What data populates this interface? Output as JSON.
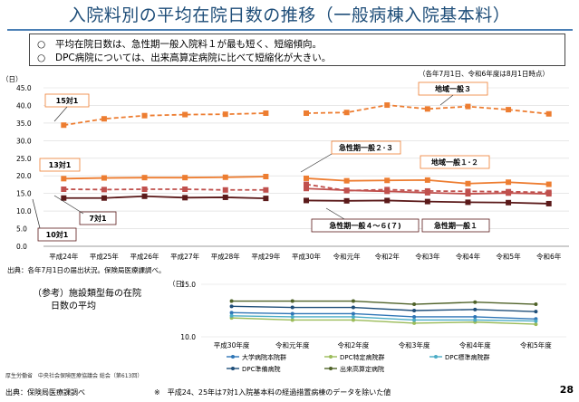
{
  "page": {
    "title": "入院料別の平均在院日数の推移（一般病棟入院基本料）",
    "page_number": "28"
  },
  "summary": [
    {
      "bullet": "○",
      "text": "平均在院日数は、急性期一般入院料１が最も短く、短縮傾向。"
    },
    {
      "bullet": "○",
      "text": "DPC病院については、出来高算定病院に比べて短縮化が大きい。"
    }
  ],
  "note_date": "（各年7月1日、令和6年度は8月1日時点）",
  "source_main": "出典：各年7月1日の届出状況。保険局医療課調べ。",
  "ref_title": "（参考）施設類型毎の在院\n　　日数の平均",
  "ref_credit": "厚生労働省　中央社会保険医療協議会 総会（第613回）",
  "source_bottom": "出典：保険局医療課調べ",
  "footnote": "※　平成24、25年は7対1入院基本料の経過措置病棟のデータを除いた値",
  "colors": {
    "orange": "#ed7d31",
    "dark_red": "#c0504d",
    "maroon": "#5b1a1a",
    "series_blue": "#2e75b6",
    "series_green": "#9bbb59",
    "series_teal": "#4bacc6",
    "series_navy": "#1f4e79",
    "series_olive": "#4f6228",
    "title": "#1f4e79"
  },
  "chart_data": [
    {
      "type": "line",
      "title": "",
      "ylabel": "（日）",
      "ylim": [
        0,
        45
      ],
      "yticks": [
        "0.0",
        "5.0",
        "10.0",
        "15.0",
        "20.0",
        "25.0",
        "30.0",
        "35.0",
        "40.0",
        "45.0"
      ],
      "grid": true,
      "categories": [
        "平成24年",
        "平成25年",
        "平成26年",
        "平成27年",
        "平成28年",
        "平成29年",
        "平成30年",
        "令和元年",
        "令和2年",
        "令和3年",
        "令和4年",
        "令和5年",
        "令和6年"
      ],
      "segment_break_after": "平成29年",
      "series": [
        {
          "name": "15対1",
          "style": "dashed",
          "color": "orange",
          "values": [
            34.4,
            36.2,
            37.1,
            37.4,
            37.5,
            37.8,
            null,
            null,
            null,
            null,
            null,
            null,
            null
          ]
        },
        {
          "name": "地域一般３",
          "style": "dashed",
          "color": "orange",
          "values": [
            null,
            null,
            null,
            null,
            null,
            null,
            37.8,
            38.0,
            40.1,
            39.0,
            39.7,
            38.8,
            37.6
          ]
        },
        {
          "name": "13対1",
          "style": "solid",
          "color": "orange",
          "values": [
            19.2,
            19.4,
            19.5,
            19.5,
            19.6,
            19.8,
            null,
            null,
            null,
            null,
            null,
            null,
            null
          ]
        },
        {
          "name": "地域一般１･２",
          "style": "solid",
          "color": "orange",
          "values": [
            null,
            null,
            null,
            null,
            null,
            null,
            19.3,
            18.6,
            18.7,
            18.8,
            17.8,
            18.2,
            17.6
          ]
        },
        {
          "name": "7対1",
          "style": "dashed",
          "color": "dark_red",
          "values": [
            16.2,
            16.1,
            16.2,
            16.2,
            16.0,
            16.0,
            null,
            null,
            null,
            null,
            null,
            null,
            null
          ]
        },
        {
          "name": "急性期一般２･３",
          "style": "dashed",
          "color": "dark_red",
          "values": [
            null,
            null,
            null,
            null,
            null,
            null,
            17.6,
            15.8,
            16.1,
            15.7,
            15.6,
            15.5,
            15.3
          ]
        },
        {
          "name": "急性期一般４～６(７)",
          "style": "solid",
          "color": "dark_red",
          "values": [
            null,
            null,
            null,
            null,
            null,
            null,
            16.4,
            15.9,
            15.6,
            15.2,
            14.9,
            15.1,
            14.9
          ]
        },
        {
          "name": "10対1",
          "style": "solid",
          "color": "maroon",
          "values": [
            13.7,
            13.7,
            14.2,
            13.8,
            13.9,
            13.6,
            null,
            null,
            null,
            null,
            null,
            null,
            null
          ]
        },
        {
          "name": "急性期一般１",
          "style": "solid",
          "color": "maroon",
          "values": [
            null,
            null,
            null,
            null,
            null,
            null,
            13.0,
            12.9,
            13.0,
            12.7,
            12.5,
            12.4,
            12.1
          ]
        }
      ]
    },
    {
      "type": "line",
      "title": "（参考）施設類型毎の在院日数の平均",
      "ylabel": "（日）",
      "ylim": [
        10.0,
        15.0
      ],
      "yticks": [
        "10.0",
        "15.0"
      ],
      "grid": true,
      "categories": [
        "平成30年度",
        "令和元年度",
        "令和2年度",
        "令和3年度",
        "令和4年度",
        "令和5年度"
      ],
      "legend_position": "bottom",
      "series": [
        {
          "name": "大学病院本院群",
          "color": "series_blue",
          "values": [
            12.3,
            12.2,
            12.2,
            11.9,
            11.9,
            11.7
          ]
        },
        {
          "name": "DPC特定病院群",
          "color": "series_green",
          "values": [
            11.8,
            11.6,
            11.6,
            11.3,
            11.4,
            11.2
          ]
        },
        {
          "name": "DPC標準病院群",
          "color": "series_teal",
          "values": [
            12.0,
            11.9,
            11.9,
            11.6,
            11.6,
            11.5
          ]
        },
        {
          "name": "DPC準備病院",
          "color": "series_navy",
          "values": [
            12.9,
            12.8,
            12.8,
            12.5,
            12.6,
            12.4
          ]
        },
        {
          "name": "出来高算定病院",
          "color": "series_olive",
          "values": [
            13.4,
            13.4,
            13.4,
            13.1,
            13.3,
            13.1
          ]
        }
      ]
    }
  ]
}
